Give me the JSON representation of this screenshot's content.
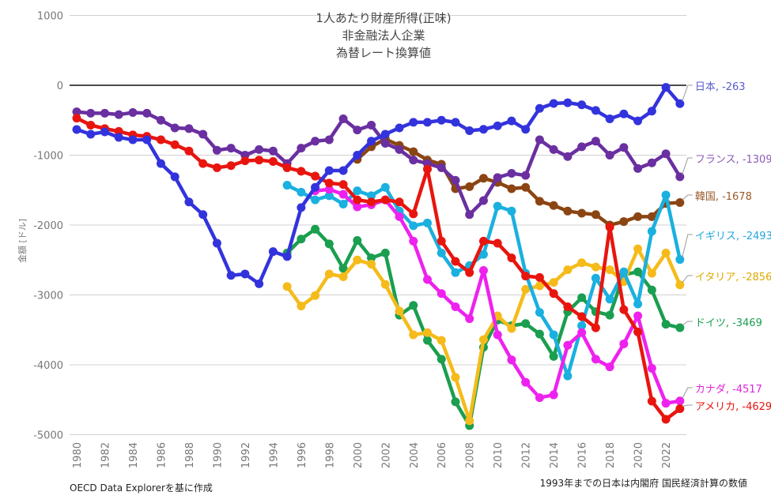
{
  "chart_data": {
    "type": "line",
    "title": [
      "1人あたり財産所得(正味)",
      "非金融法人企業",
      "為替レート換算値"
    ],
    "xlabel": "",
    "ylabel": "金額 [ドル]",
    "ylim": [
      -5000,
      1000
    ],
    "yticks": [
      1000,
      0,
      -1000,
      -2000,
      -3000,
      -4000,
      -5000
    ],
    "xticks": [
      1980,
      1982,
      1984,
      1986,
      1988,
      1990,
      1992,
      1994,
      1996,
      1998,
      2000,
      2002,
      2004,
      2006,
      2008,
      2010,
      2012,
      2014,
      2016,
      2018,
      2020,
      2022
    ],
    "grid": true,
    "legend": "end-of-line labels, right",
    "series": [
      {
        "name": "日本",
        "label": "日本, -263",
        "color": "#3333dd",
        "label_color": "#5a5ad0",
        "start": 1980,
        "values": [
          -633,
          -700,
          -667,
          -745,
          -780,
          -780,
          -1120,
          -1310,
          -1670,
          -1850,
          -2260,
          -2720,
          -2700,
          -2840,
          -2380,
          -2450,
          -1750,
          -1460,
          -1220,
          -1220,
          -1000,
          -800,
          -700,
          -610,
          -530,
          -530,
          -500,
          -530,
          -650,
          -630,
          -580,
          -510,
          -630,
          -330,
          -260,
          -250,
          -280,
          -360,
          -480,
          -410,
          -510,
          -370,
          -30,
          -263
        ]
      },
      {
        "name": "フランス",
        "label": "フランス, -1309",
        "color": "#6a2fa0",
        "label_color": "#8a5ab8",
        "start": 1980,
        "values": [
          -380,
          -400,
          -400,
          -420,
          -390,
          -400,
          -500,
          -610,
          -620,
          -700,
          -930,
          -900,
          -1000,
          -920,
          -940,
          -1120,
          -900,
          -800,
          -780,
          -480,
          -640,
          -570,
          -830,
          -920,
          -1070,
          -1120,
          -1180,
          -1360,
          -1850,
          -1650,
          -1320,
          -1260,
          -1290,
          -780,
          -920,
          -1020,
          -880,
          -800,
          -1000,
          -890,
          -1190,
          -1110,
          -980,
          -1309
        ]
      },
      {
        "name": "韓国",
        "label": "韓国, -1678",
        "color": "#8b4513",
        "label_color": "#9a5a2a",
        "start": 2000,
        "values": [
          -1060,
          -880,
          -770,
          -860,
          -950,
          -1070,
          -1130,
          -1480,
          -1450,
          -1330,
          -1390,
          -1480,
          -1460,
          -1660,
          -1720,
          -1800,
          -1830,
          -1850,
          -2000,
          -1950,
          -1880,
          -1880,
          -1690,
          -1678
        ]
      },
      {
        "name": "イギリス",
        "label": "イギリス, -2493",
        "color": "#1ab0e0",
        "label_color": "#20a8d8",
        "start": 1995,
        "values": [
          -1430,
          -1530,
          -1640,
          -1580,
          -1700,
          -1510,
          -1580,
          -1460,
          -1800,
          -2010,
          -1970,
          -2400,
          -2680,
          -2580,
          -2420,
          -1730,
          -1800,
          -2690,
          -3250,
          -3570,
          -4160,
          -3440,
          -2760,
          -3060,
          -2670,
          -3130,
          -2090,
          -1570,
          -2493
        ]
      },
      {
        "name": "イタリア",
        "label": "イタリア, -2856",
        "color": "#f5bb1a",
        "label_color": "#e0a800",
        "start": 1995,
        "values": [
          -2880,
          -3160,
          -3010,
          -2700,
          -2740,
          -2500,
          -2560,
          -2850,
          -3230,
          -3570,
          -3540,
          -3650,
          -4180,
          -4800,
          -3640,
          -3300,
          -3480,
          -2920,
          -2870,
          -2820,
          -2640,
          -2540,
          -2600,
          -2640,
          -2810,
          -2340,
          -2690,
          -2400,
          -2856
        ]
      },
      {
        "name": "ドイツ",
        "label": "ドイツ, -3469",
        "color": "#1a9e4f",
        "label_color": "#1a9e4f",
        "start": 1995,
        "values": [
          -2400,
          -2200,
          -2060,
          -2270,
          -2620,
          -2220,
          -2470,
          -2400,
          -3290,
          -3150,
          -3650,
          -3920,
          -4530,
          -4870,
          -3750,
          -3360,
          -3440,
          -3410,
          -3560,
          -3880,
          -3240,
          -3040,
          -3240,
          -3290,
          -2710,
          -2670,
          -2930,
          -3420,
          -3469
        ]
      },
      {
        "name": "カナダ",
        "label": "カナダ, -4517",
        "color": "#ee22ee",
        "label_color": "#dd22dd",
        "start": 1997,
        "values": [
          -1510,
          -1490,
          -1560,
          -1740,
          -1710,
          -1640,
          -1880,
          -2230,
          -2780,
          -2980,
          -3170,
          -3340,
          -2650,
          -3570,
          -3930,
          -4250,
          -4470,
          -4430,
          -3720,
          -3540,
          -3920,
          -4030,
          -3700,
          -3300,
          -4050,
          -4550,
          -4517
        ]
      },
      {
        "name": "アメリカ",
        "label": "アメリカ, -4629",
        "color": "#e8150f",
        "label_color": "#e8150f",
        "start": 1980,
        "values": [
          -470,
          -570,
          -620,
          -660,
          -710,
          -730,
          -780,
          -850,
          -940,
          -1120,
          -1180,
          -1150,
          -1080,
          -1070,
          -1090,
          -1180,
          -1230,
          -1300,
          -1400,
          -1420,
          -1640,
          -1670,
          -1640,
          -1670,
          -1840,
          -1200,
          -2230,
          -2520,
          -2680,
          -2230,
          -2260,
          -2470,
          -2730,
          -2750,
          -2980,
          -3170,
          -3310,
          -3470,
          -2030,
          -3210,
          -3530,
          -4520,
          -4780,
          -4629
        ]
      }
    ],
    "footnotes": {
      "left": "OECD Data Explorerを基に作成",
      "right": "1993年までの日本は内閣府 国民経済計算の数値"
    }
  }
}
